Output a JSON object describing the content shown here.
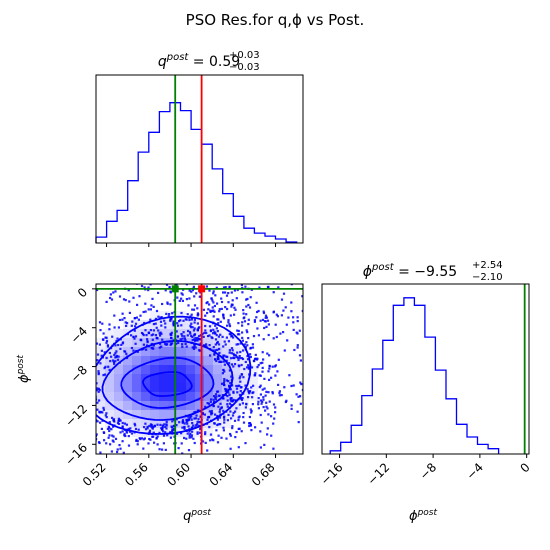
{
  "figure": {
    "title": "PSO Res.for q,ϕ vs Post."
  },
  "colors": {
    "posterior": "#0000ff",
    "truth": "#008000",
    "pso": "#ff0000",
    "axis": "#000000"
  },
  "chart_data": [
    {
      "id": "q-marginal",
      "type": "histogram",
      "title_param": "q",
      "title_sup": "post",
      "title_value": " = 0.59",
      "title_err_plus": "+0.03",
      "title_err_minus": "−0.03",
      "xlim": [
        0.51,
        0.706
      ],
      "ylim": [
        0,
        170
      ],
      "bin_edges": [
        0.51,
        0.52,
        0.53,
        0.54,
        0.55,
        0.56,
        0.57,
        0.58,
        0.59,
        0.6,
        0.61,
        0.62,
        0.63,
        0.64,
        0.65,
        0.66,
        0.67,
        0.68,
        0.69,
        0.7
      ],
      "counts": [
        6,
        22,
        33,
        63,
        92,
        112,
        133,
        142,
        134,
        115,
        100,
        75,
        50,
        27,
        15,
        10,
        7,
        4,
        1
      ],
      "truth_line": 0.585,
      "pso_line": 0.61,
      "ticks_shown": false
    },
    {
      "id": "joint",
      "type": "2d-histogram-contour",
      "xlim": [
        0.51,
        0.706
      ],
      "ylim": [
        -17,
        0.5
      ],
      "xlabel": "q",
      "xlabel_sup": "post",
      "ylabel": "ϕ",
      "ylabel_sup": "post",
      "x_ticks": [
        0.52,
        0.56,
        0.6,
        0.64,
        0.68
      ],
      "x_tick_labels": [
        "0.52",
        "0.56",
        "0.60",
        "0.64",
        "0.68"
      ],
      "y_ticks": [
        0,
        -4,
        -8,
        -12,
        -16
      ],
      "y_tick_labels": [
        "0",
        "−4",
        "−8",
        "−12",
        "−16"
      ],
      "density_peak": {
        "q": 0.57,
        "phi": -9.8
      },
      "contour_levels_sigma": [
        0.5,
        1.0,
        1.5,
        2.0
      ],
      "truth": {
        "q": 0.585,
        "phi": 0
      },
      "pso": {
        "q": 0.61,
        "phi": 0
      }
    },
    {
      "id": "phi-marginal",
      "type": "histogram",
      "title_param": "ϕ",
      "title_sup": "post",
      "title_value": " = −9.55",
      "title_err_plus": "+2.54",
      "title_err_minus": "−2.10",
      "xlim": [
        -17.5,
        0.2
      ],
      "ylim": [
        0,
        160
      ],
      "bin_edges": [
        -16.8,
        -15.9,
        -15.0,
        -14.1,
        -13.2,
        -12.3,
        -11.4,
        -10.5,
        -9.6,
        -8.7,
        -7.8,
        -6.9,
        -6.0,
        -5.1,
        -4.2,
        -3.3,
        -2.4
      ],
      "counts": [
        3,
        11,
        27,
        55,
        80,
        107,
        140,
        147,
        140,
        110,
        79,
        52,
        28,
        16,
        9,
        5
      ],
      "truth_line": 0,
      "x_label": "ϕ",
      "x_label_sup": "post",
      "x_ticks": [
        -16,
        -12,
        -8,
        -4,
        0
      ],
      "x_tick_labels": [
        "−16",
        "−12",
        "−8",
        "−4",
        "0"
      ]
    }
  ]
}
